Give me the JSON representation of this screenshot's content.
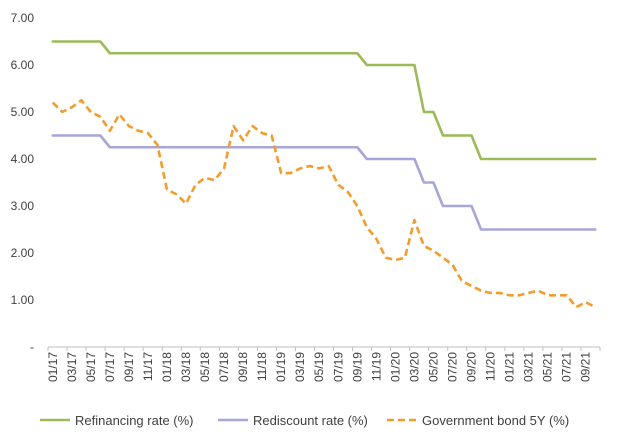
{
  "chart_data": {
    "type": "line",
    "title": "",
    "xlabel": "",
    "ylabel": "",
    "ylim": [
      0,
      7
    ],
    "y_ticks": [
      "-",
      "1.00",
      "2.00",
      "3.00",
      "4.00",
      "5.00",
      "6.00",
      "7.00"
    ],
    "x_tick_labels": [
      "01/17",
      "03/17",
      "05/17",
      "07/17",
      "09/17",
      "11/17",
      "01/18",
      "03/18",
      "05/18",
      "07/18",
      "09/18",
      "11/18",
      "01/19",
      "03/19",
      "05/19",
      "07/19",
      "09/19",
      "11/19",
      "01/20",
      "03/20",
      "05/20",
      "07/20",
      "09/20",
      "11/20",
      "01/21",
      "03/21",
      "05/21",
      "07/21",
      "09/21"
    ],
    "x": [
      "01/17",
      "02/17",
      "03/17",
      "04/17",
      "05/17",
      "06/17",
      "07/17",
      "08/17",
      "09/17",
      "10/17",
      "11/17",
      "12/17",
      "01/18",
      "02/18",
      "03/18",
      "04/18",
      "05/18",
      "06/18",
      "07/18",
      "08/18",
      "09/18",
      "10/18",
      "11/18",
      "12/18",
      "01/19",
      "02/19",
      "03/19",
      "04/19",
      "05/19",
      "06/19",
      "07/19",
      "08/19",
      "09/19",
      "10/19",
      "11/19",
      "12/19",
      "01/20",
      "02/20",
      "03/20",
      "04/20",
      "05/20",
      "06/20",
      "07/20",
      "08/20",
      "09/20",
      "10/20",
      "11/20",
      "12/20",
      "01/21",
      "02/21",
      "03/21",
      "04/21",
      "05/21",
      "06/21",
      "07/21",
      "08/21",
      "09/21",
      "10/21"
    ],
    "grid": false,
    "legend_position": "bottom",
    "series": [
      {
        "name": "Refinancing rate (%)",
        "color": "#9BBB59",
        "style": "solid",
        "values": [
          6.5,
          6.5,
          6.5,
          6.5,
          6.5,
          6.5,
          6.25,
          6.25,
          6.25,
          6.25,
          6.25,
          6.25,
          6.25,
          6.25,
          6.25,
          6.25,
          6.25,
          6.25,
          6.25,
          6.25,
          6.25,
          6.25,
          6.25,
          6.25,
          6.25,
          6.25,
          6.25,
          6.25,
          6.25,
          6.25,
          6.25,
          6.25,
          6.25,
          6.0,
          6.0,
          6.0,
          6.0,
          6.0,
          6.0,
          5.0,
          5.0,
          4.5,
          4.5,
          4.5,
          4.5,
          4.0,
          4.0,
          4.0,
          4.0,
          4.0,
          4.0,
          4.0,
          4.0,
          4.0,
          4.0,
          4.0,
          4.0,
          4.0
        ]
      },
      {
        "name": "Rediscount rate (%)",
        "color": "#A6A6D8",
        "style": "solid",
        "values": [
          4.5,
          4.5,
          4.5,
          4.5,
          4.5,
          4.5,
          4.25,
          4.25,
          4.25,
          4.25,
          4.25,
          4.25,
          4.25,
          4.25,
          4.25,
          4.25,
          4.25,
          4.25,
          4.25,
          4.25,
          4.25,
          4.25,
          4.25,
          4.25,
          4.25,
          4.25,
          4.25,
          4.25,
          4.25,
          4.25,
          4.25,
          4.25,
          4.25,
          4.0,
          4.0,
          4.0,
          4.0,
          4.0,
          4.0,
          3.5,
          3.5,
          3.0,
          3.0,
          3.0,
          3.0,
          2.5,
          2.5,
          2.5,
          2.5,
          2.5,
          2.5,
          2.5,
          2.5,
          2.5,
          2.5,
          2.5,
          2.5,
          2.5
        ]
      },
      {
        "name": "Government bond 5Y (%)",
        "color": "#F39C2E",
        "style": "dashed",
        "values": [
          5.2,
          5.0,
          5.1,
          5.25,
          5.0,
          4.9,
          4.6,
          4.95,
          4.7,
          4.6,
          4.55,
          4.3,
          3.35,
          3.25,
          3.05,
          3.45,
          3.6,
          3.55,
          3.8,
          4.7,
          4.4,
          4.7,
          4.55,
          4.5,
          3.7,
          3.7,
          3.8,
          3.85,
          3.8,
          3.85,
          3.45,
          3.3,
          3.0,
          2.55,
          2.3,
          1.9,
          1.85,
          1.9,
          2.7,
          2.15,
          2.05,
          1.9,
          1.75,
          1.4,
          1.3,
          1.2,
          1.15,
          1.15,
          1.1,
          1.1,
          1.15,
          1.2,
          1.1,
          1.1,
          1.1,
          0.85,
          0.95,
          0.85
        ]
      }
    ]
  }
}
